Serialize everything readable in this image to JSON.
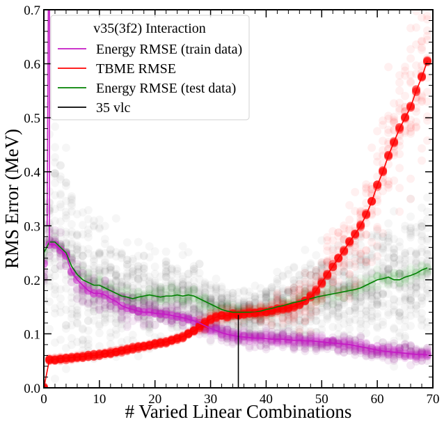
{
  "chart_data": {
    "type": "line",
    "xlabel": "# Varied Linear Combinations",
    "ylabel": "RMS Error (MeV)",
    "xlim": [
      0,
      70
    ],
    "ylim": [
      0.0,
      0.7
    ],
    "xticks": [
      0,
      10,
      20,
      30,
      40,
      50,
      60,
      70
    ],
    "xtick_labels": [
      "0",
      "10",
      "20",
      "30",
      "40",
      "50",
      "60",
      "70"
    ],
    "yticks": [
      0.0,
      0.1,
      0.2,
      0.3,
      0.4,
      0.5,
      0.6,
      0.7
    ],
    "ytick_labels": [
      "0.0",
      "0.1",
      "0.2",
      "0.3",
      "0.4",
      "0.5",
      "0.6",
      "0.7"
    ],
    "grid": false,
    "legend": {
      "title": "v35(3f2) Interaction",
      "placement": "top-left",
      "entries": [
        {
          "label": "Energy RMSE (train data)",
          "color": "#c41ac4"
        },
        {
          "label": "TBME RMSE",
          "color": "#ff0000"
        },
        {
          "label": "Energy RMSE (test data)",
          "color": "#008000"
        },
        {
          "label": "35 vlc",
          "color": "#000000"
        }
      ]
    },
    "series": [
      {
        "name": "Energy RMSE (train data)",
        "color": "#c41ac4",
        "x": [
          0,
          1,
          2,
          3,
          4,
          5,
          6,
          7,
          8,
          9,
          10,
          11,
          12,
          13,
          14,
          15,
          16,
          17,
          18,
          19,
          20,
          21,
          22,
          23,
          24,
          25,
          26,
          27,
          28,
          29,
          30,
          31,
          32,
          33,
          34,
          35,
          36,
          37,
          38,
          39,
          40,
          41,
          42,
          43,
          44,
          45,
          46,
          47,
          48,
          49,
          50,
          51,
          52,
          53,
          54,
          55,
          56,
          57,
          58,
          59,
          60,
          61,
          62,
          63,
          64,
          65,
          66,
          67,
          68,
          69
        ],
        "y": [
          0.23,
          0.265,
          0.265,
          0.255,
          0.245,
          0.215,
          0.2,
          0.19,
          0.18,
          0.175,
          0.175,
          0.172,
          0.165,
          0.16,
          0.152,
          0.148,
          0.145,
          0.142,
          0.14,
          0.14,
          0.138,
          0.137,
          0.136,
          0.134,
          0.132,
          0.13,
          0.127,
          0.124,
          0.12,
          0.115,
          0.11,
          0.106,
          0.102,
          0.099,
          0.097,
          0.095,
          0.094,
          0.093,
          0.092,
          0.092,
          0.091,
          0.09,
          0.09,
          0.09,
          0.089,
          0.088,
          0.088,
          0.087,
          0.087,
          0.086,
          0.085,
          0.084,
          0.083,
          0.082,
          0.081,
          0.08,
          0.078,
          0.076,
          0.074,
          0.072,
          0.07,
          0.068,
          0.067,
          0.066,
          0.065,
          0.064,
          0.063,
          0.062,
          0.062,
          0.061
        ]
      },
      {
        "name": "TBME RMSE",
        "color": "#ff0000",
        "x": [
          0,
          1,
          2,
          3,
          4,
          5,
          6,
          7,
          8,
          9,
          10,
          11,
          12,
          13,
          14,
          15,
          16,
          17,
          18,
          19,
          20,
          21,
          22,
          23,
          24,
          25,
          26,
          27,
          28,
          29,
          30,
          31,
          32,
          33,
          34,
          35,
          36,
          37,
          38,
          39,
          40,
          41,
          42,
          43,
          44,
          45,
          46,
          47,
          48,
          49,
          50,
          51,
          52,
          53,
          54,
          55,
          56,
          57,
          58,
          59,
          60,
          61,
          62,
          63,
          64,
          65,
          66,
          67,
          68,
          69
        ],
        "y": [
          0.0,
          0.052,
          0.053,
          0.054,
          0.055,
          0.056,
          0.057,
          0.058,
          0.059,
          0.06,
          0.061,
          0.063,
          0.065,
          0.067,
          0.069,
          0.071,
          0.073,
          0.075,
          0.077,
          0.079,
          0.081,
          0.083,
          0.085,
          0.088,
          0.091,
          0.095,
          0.1,
          0.105,
          0.112,
          0.12,
          0.127,
          0.131,
          0.133,
          0.134,
          0.135,
          0.136,
          0.137,
          0.138,
          0.139,
          0.14,
          0.141,
          0.142,
          0.144,
          0.146,
          0.148,
          0.151,
          0.155,
          0.16,
          0.168,
          0.18,
          0.195,
          0.21,
          0.225,
          0.24,
          0.255,
          0.27,
          0.285,
          0.3,
          0.32,
          0.345,
          0.375,
          0.4,
          0.43,
          0.455,
          0.48,
          0.5,
          0.52,
          0.55,
          0.575,
          0.605
        ]
      },
      {
        "name": "Energy RMSE (test data)",
        "color": "#008000",
        "x": [
          0,
          1,
          2,
          3,
          4,
          5,
          6,
          7,
          8,
          9,
          10,
          11,
          12,
          13,
          14,
          15,
          16,
          17,
          18,
          19,
          20,
          21,
          22,
          23,
          24,
          25,
          26,
          27,
          28,
          29,
          30,
          31,
          32,
          33,
          34,
          35,
          36,
          37,
          38,
          39,
          40,
          41,
          42,
          43,
          44,
          45,
          46,
          47,
          48,
          49,
          50,
          51,
          52,
          53,
          54,
          55,
          56,
          57,
          58,
          59,
          60,
          61,
          62,
          63,
          64,
          65,
          66,
          67,
          68,
          69
        ],
        "y": [
          0.25,
          0.27,
          0.27,
          0.26,
          0.25,
          0.225,
          0.21,
          0.2,
          0.195,
          0.19,
          0.19,
          0.185,
          0.18,
          0.175,
          0.17,
          0.168,
          0.165,
          0.168,
          0.17,
          0.172,
          0.17,
          0.168,
          0.17,
          0.17,
          0.172,
          0.17,
          0.172,
          0.17,
          0.165,
          0.16,
          0.155,
          0.15,
          0.145,
          0.142,
          0.14,
          0.14,
          0.14,
          0.14,
          0.14,
          0.142,
          0.145,
          0.147,
          0.15,
          0.152,
          0.155,
          0.158,
          0.16,
          0.163,
          0.165,
          0.168,
          0.17,
          0.172,
          0.174,
          0.176,
          0.178,
          0.18,
          0.182,
          0.185,
          0.19,
          0.195,
          0.2,
          0.202,
          0.205,
          0.2,
          0.2,
          0.205,
          0.208,
          0.212,
          0.218,
          0.222
        ]
      },
      {
        "name": "35 vlc",
        "color": "#000000",
        "x": [
          35,
          35
        ],
        "y": [
          0.0,
          0.135
        ]
      }
    ]
  }
}
